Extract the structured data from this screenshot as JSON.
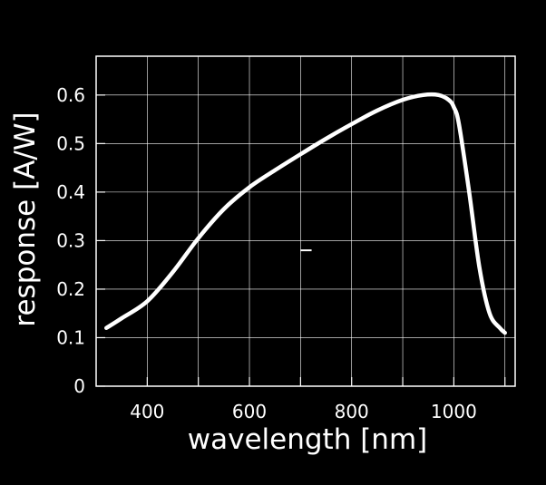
{
  "chart_data": {
    "type": "line",
    "title": "",
    "xlabel": "wavelength [nm]",
    "ylabel": "response [A/W]",
    "xlim": [
      300,
      1120
    ],
    "ylim": [
      0,
      0.68
    ],
    "x_ticks": [
      400,
      600,
      800,
      1000
    ],
    "x_tick_labels": [
      "400",
      "600",
      "800",
      "1000"
    ],
    "y_ticks": [
      0,
      0.1,
      0.2,
      0.3,
      0.4,
      0.5,
      0.6
    ],
    "y_tick_labels": [
      "0",
      "0.1",
      "0.2",
      "0.3",
      "0.4",
      "0.5",
      "0.6"
    ],
    "grid": true,
    "colors": {
      "background": "#000000",
      "line": "#ffffff",
      "grid": "#ffffff",
      "axes": "#ffffff"
    },
    "series": [
      {
        "x": [
          320,
          350,
          400,
          450,
          500,
          550,
          600,
          650,
          700,
          750,
          800,
          850,
          900,
          940,
          970,
          990,
          1000,
          1010,
          1030,
          1050,
          1070,
          1090,
          1100
        ],
        "y": [
          0.12,
          0.14,
          0.175,
          0.235,
          0.305,
          0.365,
          0.41,
          0.445,
          0.478,
          0.51,
          0.54,
          0.568,
          0.59,
          0.6,
          0.6,
          0.59,
          0.575,
          0.54,
          0.4,
          0.245,
          0.15,
          0.12,
          0.11
        ]
      }
    ],
    "annotations": [
      {
        "x": 711,
        "y": 0.28,
        "text": ""
      }
    ]
  }
}
